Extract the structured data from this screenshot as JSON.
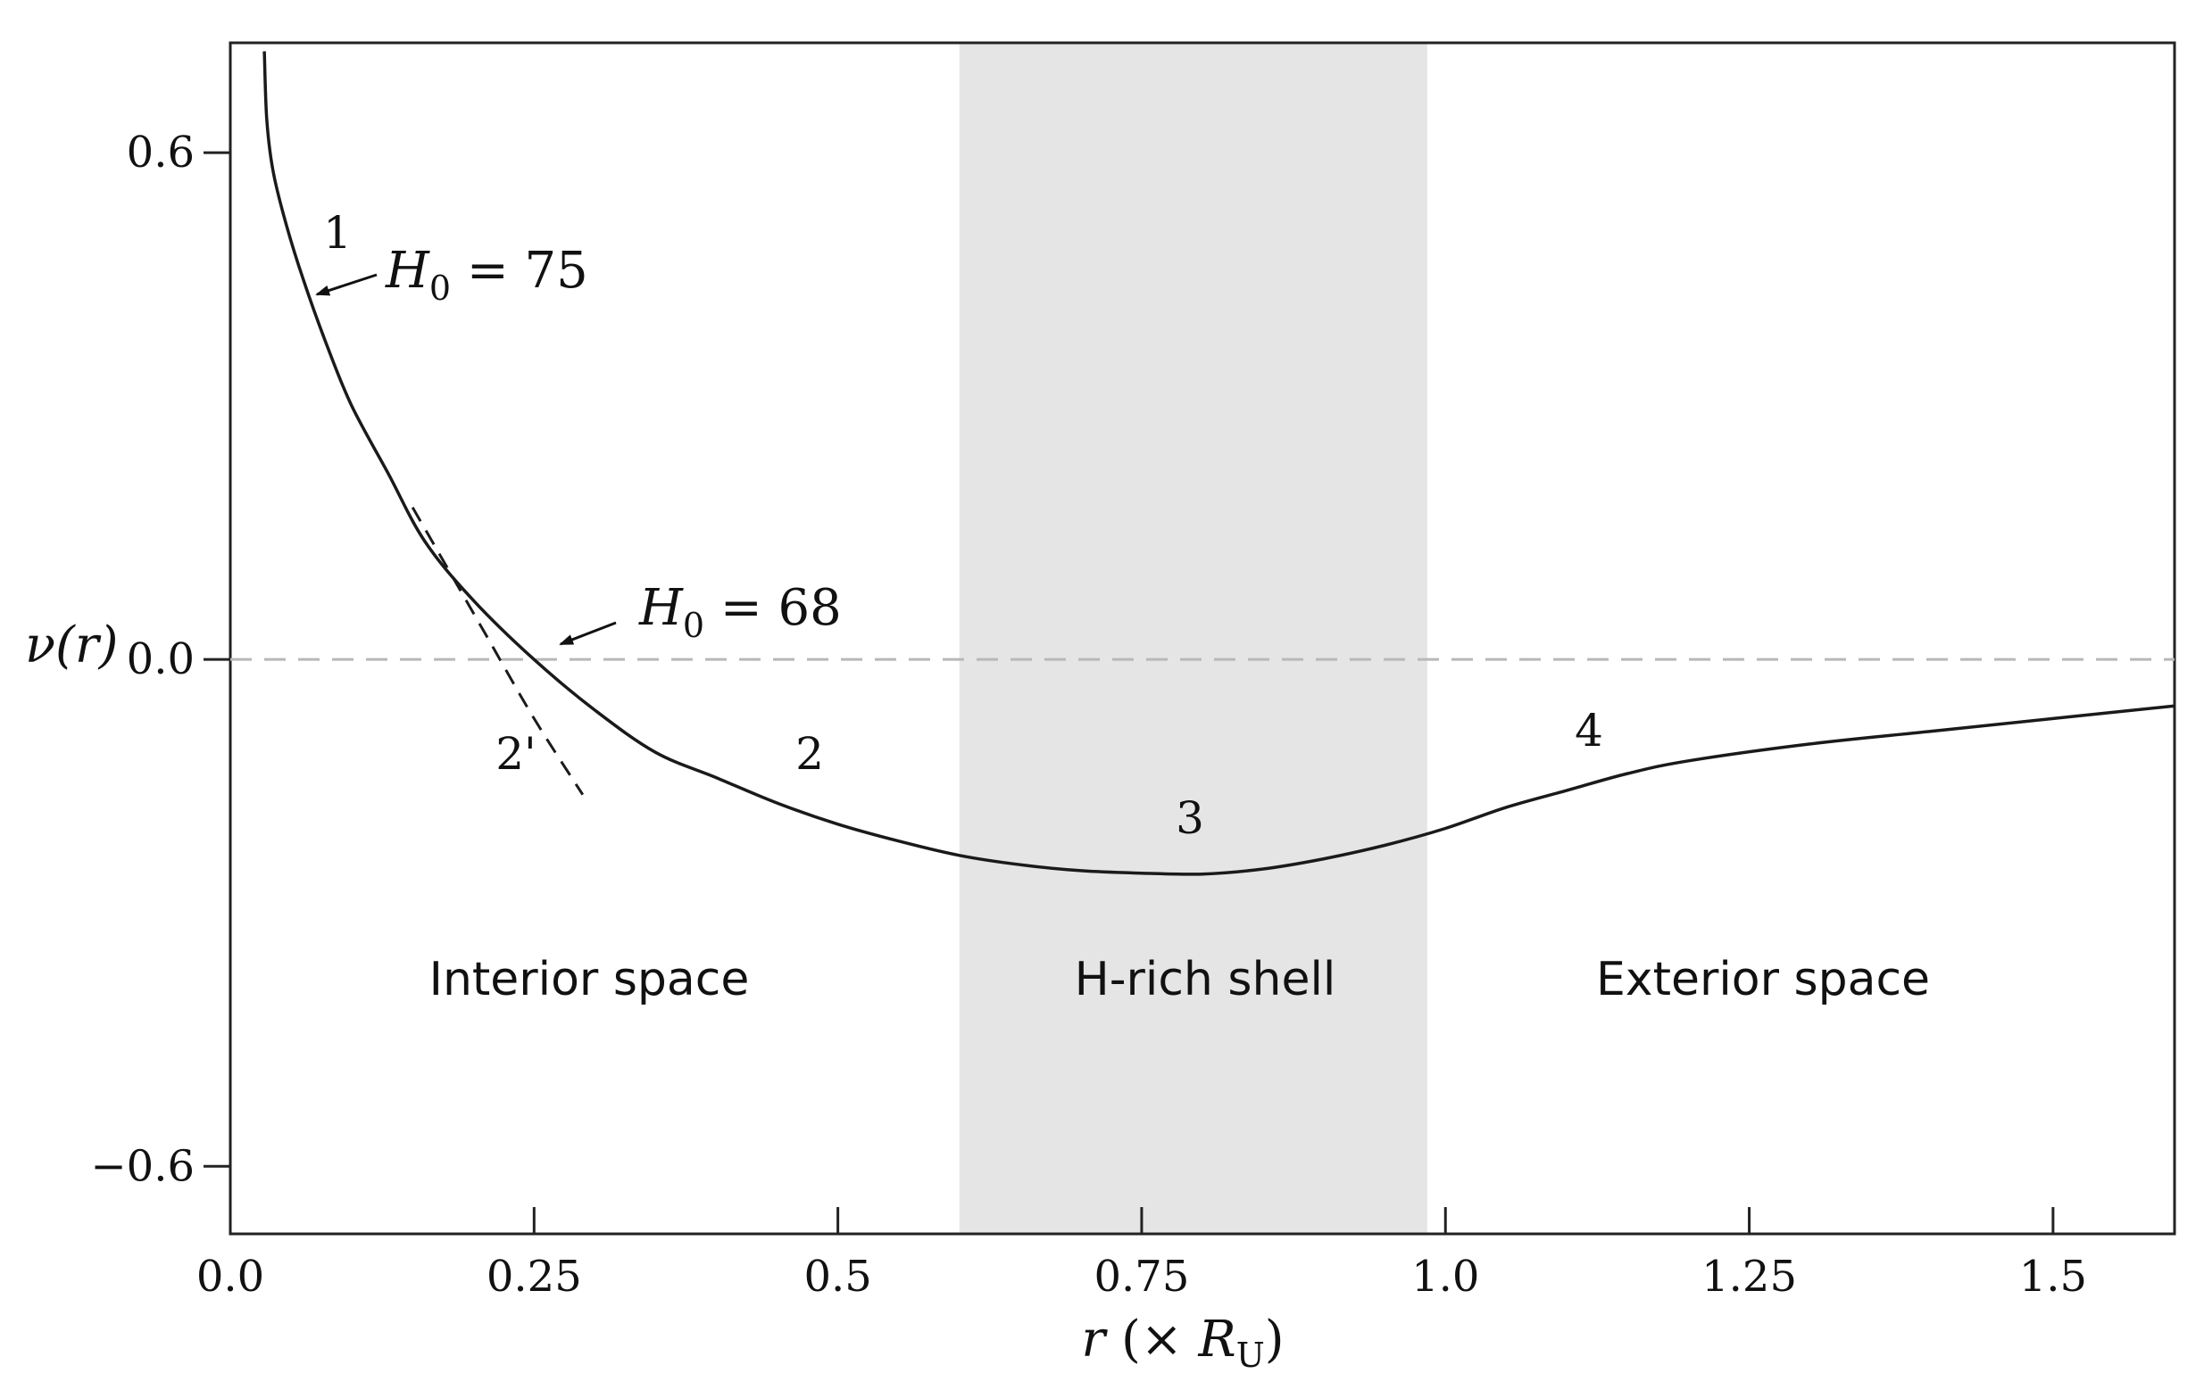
{
  "chart_data": {
    "type": "line",
    "xlabel": {
      "var": "r",
      "open": " (× ",
      "sym": "R",
      "sub": "U",
      "close": ")"
    },
    "ylabel": {
      "text": "ν(r)"
    },
    "xlim": [
      0.0,
      1.6
    ],
    "ylim": [
      -0.68,
      0.73
    ],
    "x_ticks": [
      {
        "value": 0.0,
        "label": "0.0"
      },
      {
        "value": 0.25,
        "label": "0.25"
      },
      {
        "value": 0.5,
        "label": "0.5"
      },
      {
        "value": 0.75,
        "label": "0.75"
      },
      {
        "value": 1.0,
        "label": "1.0"
      },
      {
        "value": 1.25,
        "label": "1.25"
      },
      {
        "value": 1.5,
        "label": "1.5"
      }
    ],
    "y_ticks": [
      {
        "value": 0.6,
        "label": "0.6"
      },
      {
        "value": 0.0,
        "label": "0.0"
      },
      {
        "value": -0.6,
        "label": "−0.6"
      }
    ],
    "grid": false,
    "shaded_region": {
      "x": [
        0.6,
        0.985
      ],
      "color": "#e6e5e6"
    },
    "zero_line": {
      "y": 0.0,
      "style": "dashed",
      "color": "#b8b8b8"
    },
    "series": [
      {
        "id": "main",
        "style": "solid",
        "color": "#1a1a1a",
        "points": [
          [
            0.028,
            0.72
          ],
          [
            0.03,
            0.64
          ],
          [
            0.035,
            0.58
          ],
          [
            0.045,
            0.52
          ],
          [
            0.06,
            0.45
          ],
          [
            0.08,
            0.37
          ],
          [
            0.1,
            0.3
          ],
          [
            0.13,
            0.22
          ],
          [
            0.16,
            0.14
          ],
          [
            0.2,
            0.07
          ],
          [
            0.25,
            0.0
          ],
          [
            0.3,
            -0.06
          ],
          [
            0.35,
            -0.11
          ],
          [
            0.4,
            -0.14
          ],
          [
            0.45,
            -0.17
          ],
          [
            0.5,
            -0.195
          ],
          [
            0.55,
            -0.215
          ],
          [
            0.6,
            -0.232
          ],
          [
            0.65,
            -0.243
          ],
          [
            0.7,
            -0.25
          ],
          [
            0.75,
            -0.253
          ],
          [
            0.8,
            -0.254
          ],
          [
            0.85,
            -0.248
          ],
          [
            0.9,
            -0.236
          ],
          [
            0.95,
            -0.22
          ],
          [
            1.0,
            -0.2
          ],
          [
            1.05,
            -0.175
          ],
          [
            1.1,
            -0.155
          ],
          [
            1.15,
            -0.135
          ],
          [
            1.2,
            -0.12
          ],
          [
            1.3,
            -0.1
          ],
          [
            1.4,
            -0.085
          ],
          [
            1.5,
            -0.07
          ],
          [
            1.6,
            -0.055
          ]
        ]
      },
      {
        "id": "alt-2prime",
        "style": "dashed",
        "color": "#1a1a1a",
        "points": [
          [
            0.15,
            0.18
          ],
          [
            0.21,
            0.03
          ],
          [
            0.25,
            -0.07
          ],
          [
            0.29,
            -0.16
          ]
        ]
      }
    ],
    "annotations": {
      "label_1": "1",
      "label_2": "2",
      "label_2prime": "2'",
      "label_3": "3",
      "label_4": "4",
      "h0_75": {
        "sym": "H",
        "sub": "0",
        "rest": " = 75"
      },
      "h0_68": {
        "sym": "H",
        "sub": "0",
        "rest": " = 68"
      }
    },
    "regions": {
      "interior": "Interior space",
      "shell": "H-rich shell",
      "exterior": "Exterior space"
    }
  }
}
